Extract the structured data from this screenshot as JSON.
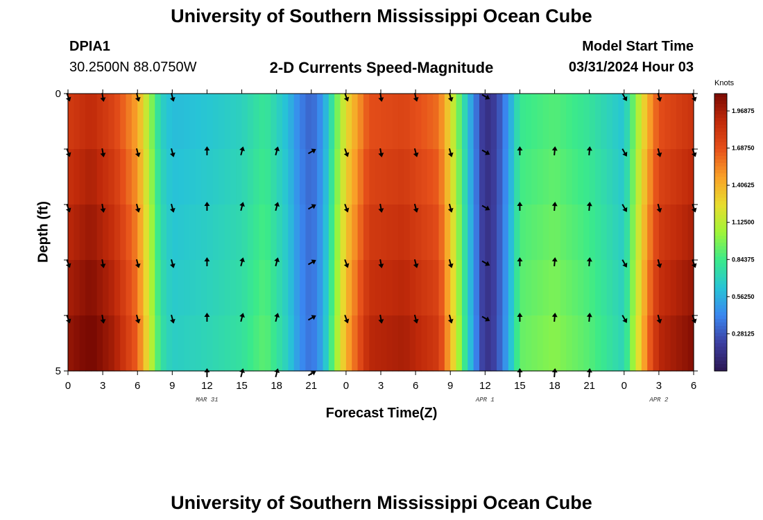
{
  "header": {
    "title": "University of Southern Mississippi Ocean Cube",
    "station": "DPIA1",
    "coords": "30.2500N  88.0750W",
    "chart_title": "2-D Currents Speed-Magnitude",
    "model_start_label": "Model Start Time",
    "model_start_value": "03/31/2024 Hour 03"
  },
  "footer": {
    "title": "University of Southern Mississippi Ocean Cube"
  },
  "colors": {
    "stops": [
      "#2b1652",
      "#3d3fa0",
      "#3a86f0",
      "#27c4d6",
      "#3bea8a",
      "#a0f538",
      "#e8dc2e",
      "#f9a028",
      "#e6501a",
      "#c02a0a",
      "#7a0a02"
    ]
  },
  "chart_data": {
    "type": "heatmap",
    "title": "2-D Currents Speed-Magnitude",
    "xlabel": "Forecast Time(Z)",
    "ylabel": "Depth (ft)",
    "x_hours": [
      0,
      3,
      6,
      9,
      12,
      15,
      18,
      21,
      24,
      27,
      30,
      33,
      36,
      39,
      42,
      45,
      48,
      51,
      54
    ],
    "x_tick_labels": [
      "0",
      "3",
      "6",
      "9",
      "12",
      "15",
      "18",
      "21",
      "0",
      "3",
      "6",
      "9",
      "12",
      "15",
      "18",
      "21",
      "0",
      "3",
      "6"
    ],
    "date_labels": [
      {
        "label": "MAR 31",
        "hour": 12
      },
      {
        "label": "APR 1",
        "hour": 36
      },
      {
        "label": "APR 2",
        "hour": 51
      }
    ],
    "y_tick_labels": [
      "0",
      "5"
    ],
    "ylim": [
      0,
      5
    ],
    "depth_layers": 5,
    "colorbar": {
      "unit": "Knots",
      "range": [
        0,
        2.1
      ],
      "labels": [
        "1.96875",
        "1.68750",
        "1.40625",
        "1.12500",
        "0.84375",
        "0.56250",
        "0.28125"
      ],
      "values": [
        1.96875,
        1.6875,
        1.40625,
        1.125,
        0.84375,
        0.5625,
        0.28125
      ]
    },
    "speed_profile": {
      "hours": [
        0,
        2,
        4,
        6,
        7,
        8,
        9,
        12,
        15,
        17,
        19,
        20,
        21,
        22,
        23,
        24,
        26,
        29,
        32,
        33,
        34,
        35,
        36,
        37,
        38,
        39,
        42,
        45,
        48,
        49,
        50,
        51,
        54
      ],
      "knots": [
        1.85,
        1.95,
        1.8,
        1.5,
        1.1,
        0.72,
        0.62,
        0.66,
        0.72,
        0.84,
        0.62,
        0.42,
        0.32,
        0.5,
        0.9,
        1.3,
        1.75,
        1.8,
        1.65,
        1.3,
        0.85,
        0.45,
        0.12,
        0.22,
        0.5,
        0.85,
        0.92,
        0.82,
        0.65,
        1.05,
        1.45,
        1.75,
        1.9
      ]
    },
    "arrow_directions_deg": [
      {
        "hour": 0,
        "dir": 160
      },
      {
        "hour": 3,
        "dir": 170
      },
      {
        "hour": 6,
        "dir": 165
      },
      {
        "hour": 9,
        "dir": 165
      },
      {
        "hour": 12,
        "dir": 0
      },
      {
        "hour": 15,
        "dir": 15
      },
      {
        "hour": 18,
        "dir": 15
      },
      {
        "hour": 21,
        "dir": 60
      },
      {
        "hour": 24,
        "dir": 160
      },
      {
        "hour": 27,
        "dir": 170
      },
      {
        "hour": 30,
        "dir": 165
      },
      {
        "hour": 33,
        "dir": 165
      },
      {
        "hour": 36,
        "dir": 120
      },
      {
        "hour": 39,
        "dir": 0
      },
      {
        "hour": 42,
        "dir": 5
      },
      {
        "hour": 45,
        "dir": 5
      },
      {
        "hour": 48,
        "dir": 150
      },
      {
        "hour": 51,
        "dir": 165
      },
      {
        "hour": 54,
        "dir": 160
      }
    ]
  }
}
